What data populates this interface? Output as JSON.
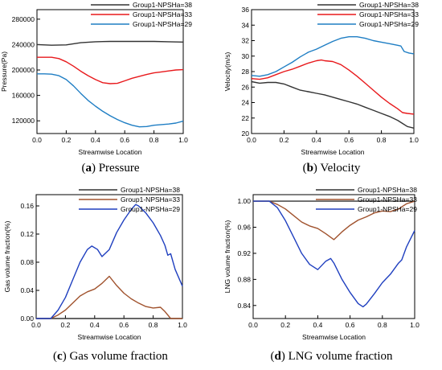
{
  "chart_data": [
    {
      "id": "a",
      "type": "line",
      "caption_letter": "a",
      "caption_text": "Pressure",
      "xlabel": "Streamwise Location",
      "ylabel": "Pressure(Pa)",
      "xlim": [
        0.0,
        1.0
      ],
      "ylim": [
        100000,
        295000
      ],
      "xticks": [
        0.0,
        0.2,
        0.4,
        0.6,
        0.8,
        1.0
      ],
      "xtick_labels": [
        "0.0",
        "0.2",
        "0.4",
        "0.6",
        "0.8",
        "1.0"
      ],
      "yticks": [
        120000,
        160000,
        200000,
        240000,
        280000
      ],
      "ytick_labels": [
        "120000",
        "160000",
        "200000",
        "240000",
        "280000"
      ],
      "legend_position": "top-right",
      "series": [
        {
          "name": "Group1-NPSHa=38",
          "color": "#333333",
          "x": [
            0,
            0.1,
            0.2,
            0.3,
            0.4,
            0.5,
            0.6,
            0.7,
            0.8,
            0.9,
            1.0
          ],
          "y": [
            240000,
            239000,
            239500,
            243000,
            244500,
            245000,
            245000,
            245000,
            245000,
            244500,
            244000
          ]
        },
        {
          "name": "Group1-NPSHa=33",
          "color": "#e8191c",
          "x": [
            0,
            0.05,
            0.1,
            0.15,
            0.2,
            0.25,
            0.3,
            0.35,
            0.4,
            0.45,
            0.5,
            0.55,
            0.6,
            0.65,
            0.7,
            0.75,
            0.8,
            0.85,
            0.9,
            0.95,
            1.0
          ],
          "y": [
            220000,
            220000,
            220000,
            218000,
            213000,
            206000,
            198000,
            191000,
            185000,
            180000,
            178500,
            179000,
            183000,
            187000,
            190000,
            193000,
            195500,
            197000,
            198500,
            200000,
            200500
          ]
        },
        {
          "name": "Group1-NPSHa=29",
          "color": "#1f7ec4",
          "x": [
            0,
            0.05,
            0.1,
            0.15,
            0.2,
            0.25,
            0.3,
            0.35,
            0.4,
            0.45,
            0.5,
            0.55,
            0.6,
            0.65,
            0.7,
            0.75,
            0.8,
            0.85,
            0.9,
            0.95,
            1.0
          ],
          "y": [
            194000,
            194000,
            193500,
            191000,
            185000,
            175000,
            163000,
            152000,
            143000,
            135000,
            128000,
            122000,
            117000,
            113000,
            110500,
            111000,
            113000,
            114000,
            115000,
            116500,
            119500
          ]
        }
      ]
    },
    {
      "id": "b",
      "type": "line",
      "caption_letter": "b",
      "caption_text": "Velocity",
      "xlabel": "Streamwise Location",
      "ylabel": "Velocity(m/s)",
      "xlim": [
        0.0,
        1.0
      ],
      "ylim": [
        20,
        36
      ],
      "xticks": [
        0.0,
        0.2,
        0.4,
        0.6,
        0.8,
        1.0
      ],
      "xtick_labels": [
        "0.0",
        "0.2",
        "0.4",
        "0.6",
        "0.8",
        "1.0"
      ],
      "yticks": [
        20,
        22,
        24,
        26,
        28,
        30,
        32,
        34,
        36
      ],
      "ytick_labels": [
        "20",
        "22",
        "24",
        "26",
        "28",
        "30",
        "32",
        "34",
        "36"
      ],
      "legend_position": "top-right",
      "series": [
        {
          "name": "Group1-NPSHa=38",
          "color": "#333333",
          "x": [
            0,
            0.05,
            0.1,
            0.15,
            0.2,
            0.25,
            0.3,
            0.35,
            0.4,
            0.45,
            0.5,
            0.55,
            0.6,
            0.65,
            0.7,
            0.75,
            0.8,
            0.85,
            0.9,
            0.93,
            0.96,
            1.0
          ],
          "y": [
            26.7,
            26.5,
            26.6,
            26.6,
            26.4,
            26.0,
            25.6,
            25.4,
            25.2,
            25.0,
            24.7,
            24.4,
            24.1,
            23.8,
            23.4,
            23.0,
            22.6,
            22.2,
            21.7,
            21.3,
            20.9,
            20.7
          ]
        },
        {
          "name": "Group1-NPSHa=33",
          "color": "#e8191c",
          "x": [
            0,
            0.05,
            0.1,
            0.15,
            0.2,
            0.25,
            0.3,
            0.35,
            0.4,
            0.43,
            0.45,
            0.5,
            0.55,
            0.6,
            0.65,
            0.7,
            0.75,
            0.8,
            0.85,
            0.9,
            0.93,
            0.96,
            1.0
          ],
          "y": [
            27.1,
            27.0,
            27.2,
            27.6,
            28.0,
            28.3,
            28.7,
            29.1,
            29.4,
            29.5,
            29.4,
            29.3,
            28.9,
            28.2,
            27.4,
            26.5,
            25.6,
            24.7,
            23.9,
            23.2,
            22.7,
            22.6,
            22.5
          ]
        },
        {
          "name": "Group1-NPSHa=29",
          "color": "#1f7ec4",
          "x": [
            0,
            0.05,
            0.1,
            0.15,
            0.2,
            0.25,
            0.3,
            0.35,
            0.4,
            0.45,
            0.5,
            0.55,
            0.6,
            0.65,
            0.7,
            0.75,
            0.8,
            0.85,
            0.9,
            0.92,
            0.94,
            0.97,
            1.0
          ],
          "y": [
            27.5,
            27.4,
            27.6,
            28.0,
            28.6,
            29.2,
            29.9,
            30.5,
            30.9,
            31.4,
            31.9,
            32.3,
            32.5,
            32.5,
            32.3,
            32.0,
            31.8,
            31.6,
            31.4,
            31.3,
            30.6,
            30.4,
            30.3
          ]
        }
      ]
    },
    {
      "id": "c",
      "type": "line",
      "caption_letter": "c",
      "caption_text": "Gas volume fraction",
      "xlabel": "Streamwise Location",
      "ylabel": "Gas volume fraction(%)",
      "xlim": [
        0.0,
        1.0
      ],
      "ylim": [
        0.0,
        0.176
      ],
      "xticks": [
        0.0,
        0.2,
        0.4,
        0.6,
        0.8,
        1.0
      ],
      "xtick_labels": [
        "0.0",
        "0.2",
        "0.4",
        "0.6",
        "0.8",
        "1.0"
      ],
      "yticks": [
        0.0,
        0.04,
        0.08,
        0.12,
        0.16
      ],
      "ytick_labels": [
        "0.00",
        "0.04",
        "0.08",
        "0.12",
        "0.16"
      ],
      "legend_position": "top-right",
      "series": [
        {
          "name": "Group1-NPSHa=38",
          "color": "#333333",
          "x": [
            0,
            1.0
          ],
          "y": [
            0.0,
            0.0
          ]
        },
        {
          "name": "Group1-NPSHa=33",
          "color": "#a0522d",
          "x": [
            0,
            0.1,
            0.15,
            0.2,
            0.25,
            0.3,
            0.35,
            0.4,
            0.45,
            0.5,
            0.55,
            0.6,
            0.65,
            0.7,
            0.75,
            0.8,
            0.85,
            0.88,
            0.92,
            1.0
          ],
          "y": [
            0,
            0,
            0.005,
            0.012,
            0.022,
            0.032,
            0.038,
            0.042,
            0.05,
            0.06,
            0.047,
            0.036,
            0.028,
            0.022,
            0.017,
            0.015,
            0.016,
            0.01,
            0.0,
            0.0
          ]
        },
        {
          "name": "Group1-NPSHa=29",
          "color": "#1f3fbf",
          "x": [
            0,
            0.1,
            0.15,
            0.2,
            0.25,
            0.3,
            0.35,
            0.38,
            0.42,
            0.45,
            0.5,
            0.55,
            0.6,
            0.65,
            0.68,
            0.7,
            0.75,
            0.8,
            0.85,
            0.88,
            0.9,
            0.92,
            0.95,
            1.0
          ],
          "y": [
            0,
            0,
            0.012,
            0.03,
            0.055,
            0.08,
            0.098,
            0.103,
            0.098,
            0.088,
            0.098,
            0.122,
            0.14,
            0.155,
            0.162,
            0.16,
            0.15,
            0.136,
            0.118,
            0.104,
            0.09,
            0.092,
            0.07,
            0.046
          ]
        }
      ]
    },
    {
      "id": "d",
      "type": "line",
      "caption_letter": "d",
      "caption_text": "LNG volume fraction",
      "xlabel": "Streamwise Location",
      "ylabel": "LNG volume fraction(%)",
      "xlim": [
        0.0,
        1.0
      ],
      "ylim": [
        0.82,
        1.01
      ],
      "xticks": [
        0.0,
        0.2,
        0.4,
        0.6,
        0.8,
        1.0
      ],
      "xtick_labels": [
        "0.0",
        "0.2",
        "0.4",
        "0.6",
        "0.8",
        "1.0"
      ],
      "yticks": [
        0.84,
        0.88,
        0.92,
        0.96,
        1.0
      ],
      "ytick_labels": [
        "0.84",
        "0.88",
        "0.92",
        "0.96",
        "1.00"
      ],
      "legend_position": "top-right",
      "series": [
        {
          "name": "Group1-NPSHa=38",
          "color": "#333333",
          "x": [
            0,
            1.0
          ],
          "y": [
            1.0,
            1.0
          ]
        },
        {
          "name": "Group1-NPSHa=33",
          "color": "#a0522d",
          "x": [
            0,
            0.1,
            0.15,
            0.2,
            0.25,
            0.3,
            0.35,
            0.4,
            0.45,
            0.5,
            0.55,
            0.6,
            0.65,
            0.7,
            0.75,
            0.8,
            0.85,
            0.9,
            0.95,
            1.0
          ],
          "y": [
            1.0,
            1.0,
            0.995,
            0.988,
            0.978,
            0.968,
            0.962,
            0.958,
            0.95,
            0.941,
            0.953,
            0.963,
            0.971,
            0.976,
            0.982,
            0.985,
            0.984,
            0.988,
            0.996,
            1.0
          ]
        },
        {
          "name": "Group1-NPSHa=29",
          "color": "#1f3fbf",
          "x": [
            0,
            0.1,
            0.15,
            0.2,
            0.25,
            0.3,
            0.35,
            0.4,
            0.45,
            0.48,
            0.5,
            0.55,
            0.6,
            0.65,
            0.68,
            0.7,
            0.75,
            0.8,
            0.85,
            0.9,
            0.92,
            0.95,
            1.0
          ],
          "y": [
            1.0,
            1.0,
            0.99,
            0.97,
            0.945,
            0.92,
            0.903,
            0.895,
            0.908,
            0.912,
            0.905,
            0.88,
            0.86,
            0.843,
            0.838,
            0.842,
            0.858,
            0.875,
            0.888,
            0.905,
            0.91,
            0.93,
            0.955
          ]
        }
      ]
    }
  ]
}
